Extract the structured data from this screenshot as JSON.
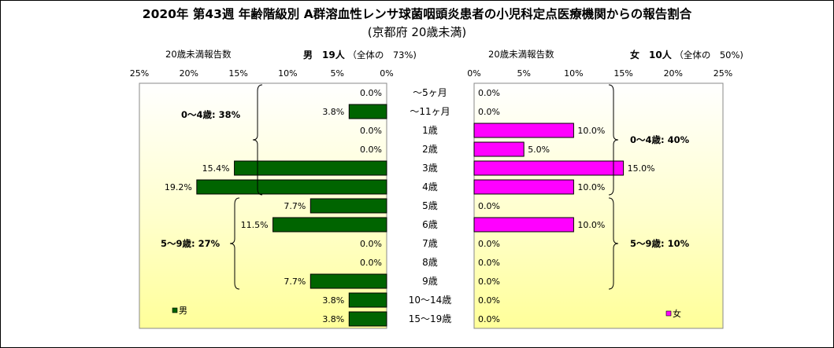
{
  "title": "2020年 第43週 年齢階級別 A群溶血性レンサ球菌咽頭炎患者の小児科定点医療機関からの報告割合",
  "subtitle": "(京都府 20歳未満)",
  "male_header": {
    "count_label": "20歳未満報告数",
    "sex_count": "男　19人",
    "share": "（全体の　73%)"
  },
  "female_header": {
    "count_label": "20歳未満報告数",
    "sex_count": "女　10人",
    "share": "（全体の　50%)"
  },
  "colors": {
    "male": "#006400",
    "female": "#ff00ff",
    "bg_top": "#ffffff",
    "bg_bottom": "#ffff99"
  },
  "chart_data": [
    {
      "type": "bar",
      "name": "男",
      "categories": [
        "～5ヶ月",
        "～11ヶ月",
        "1歳",
        "2歳",
        "3歳",
        "4歳",
        "5歳",
        "6歳",
        "7歳",
        "8歳",
        "9歳",
        "10～14歳",
        "15～19歳"
      ],
      "values": [
        0.0,
        3.8,
        0.0,
        0.0,
        15.4,
        19.2,
        7.7,
        11.5,
        0.0,
        0.0,
        7.7,
        3.8,
        3.8
      ],
      "data_labels": [
        "0.0%",
        "3.8%",
        "0.0%",
        "0.0%",
        "15.4%",
        "19.2%",
        "7.7%",
        "11.5%",
        "0.0%",
        "0.0%",
        "7.7%",
        "3.8%",
        "3.8%"
      ],
      "xlim": [
        0,
        25
      ],
      "x_ticks": [
        "25%",
        "20%",
        "15%",
        "10%",
        "5%",
        "0%"
      ],
      "orientation": "horizontal-reversed",
      "legend": "男",
      "groups": [
        {
          "label": "0～4歳: 38%",
          "from": 0,
          "to": 5
        },
        {
          "label": "5～9歳: 27%",
          "from": 6,
          "to": 10
        }
      ]
    },
    {
      "type": "bar",
      "name": "女",
      "categories": [
        "～5ヶ月",
        "～11ヶ月",
        "1歳",
        "2歳",
        "3歳",
        "4歳",
        "5歳",
        "6歳",
        "7歳",
        "8歳",
        "9歳",
        "10～14歳",
        "15～19歳"
      ],
      "values": [
        0.0,
        0.0,
        10.0,
        5.0,
        15.0,
        10.0,
        0.0,
        10.0,
        0.0,
        0.0,
        0.0,
        0.0,
        0.0
      ],
      "data_labels": [
        "0.0%",
        "0.0%",
        "10.0%",
        "5.0%",
        "15.0%",
        "10.0%",
        "0.0%",
        "10.0%",
        "0.0%",
        "0.0%",
        "0.0%",
        "0.0%",
        "0.0%"
      ],
      "xlim": [
        0,
        25
      ],
      "x_ticks": [
        "0%",
        "5%",
        "10%",
        "15%",
        "20%",
        "25%"
      ],
      "orientation": "horizontal",
      "legend": "女",
      "groups": [
        {
          "label": "0～4歳: 40%",
          "from": 0,
          "to": 5
        },
        {
          "label": "5～9歳: 10%",
          "from": 6,
          "to": 10
        }
      ]
    }
  ]
}
